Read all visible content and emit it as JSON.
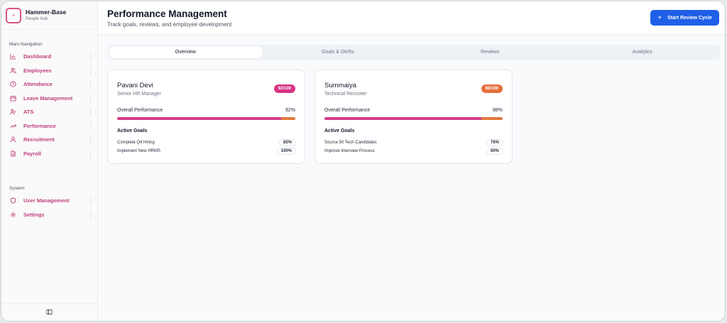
{
  "brand": {
    "name": "Hammer-Base",
    "subtitle": "People Hub",
    "logo_text": "a"
  },
  "sidebar": {
    "main_label": "Main Navigation",
    "items": [
      {
        "label": "Dashboard",
        "icon": "bar-chart-icon"
      },
      {
        "label": "Employees",
        "icon": "users-icon"
      },
      {
        "label": "Attendance",
        "icon": "clock-icon"
      },
      {
        "label": "Leave Management",
        "icon": "calendar-icon"
      },
      {
        "label": "ATS",
        "icon": "user-check-icon"
      },
      {
        "label": "Performance",
        "icon": "trending-up-icon"
      },
      {
        "label": "Recruitment",
        "icon": "user-icon"
      },
      {
        "label": "Payroll",
        "icon": "file-icon"
      }
    ],
    "system_label": "System",
    "system_items": [
      {
        "label": "User Management",
        "icon": "shield-icon"
      },
      {
        "label": "Settings",
        "icon": "gear-icon"
      }
    ],
    "icon_color": "#c0407a"
  },
  "header": {
    "title": "Performance Management",
    "subtitle": "Track goals, reviews, and employee development",
    "cta_label": "Start Review Cycle"
  },
  "tabs": [
    {
      "label": "Overview",
      "active": true
    },
    {
      "label": "Goals & OKRs",
      "active": false
    },
    {
      "label": "Reviews",
      "active": false
    },
    {
      "label": "Analytics",
      "active": false
    }
  ],
  "employees": [
    {
      "name": "Pavani Devi",
      "role": "Senior HR Manager",
      "score_badge": "92/100",
      "badge_color": "#d63384",
      "overall_label": "Overall Performance",
      "overall_value": "92%",
      "overall_fraction": 0.92,
      "goals_title": "Active Goals",
      "goals": [
        {
          "name": "Complete Q4 Hiring",
          "value": "85%"
        },
        {
          "name": "Implement New HRMS",
          "value": "100%"
        }
      ]
    },
    {
      "name": "Summaiya",
      "role": "Technical Recruiter",
      "score_badge": "88/100",
      "badge_color": "#e4703e",
      "overall_label": "Overall Performance",
      "overall_value": "88%",
      "overall_fraction": 0.88,
      "goals_title": "Active Goals",
      "goals": [
        {
          "name": "Source 50 Tech Candidates",
          "value": "76%"
        },
        {
          "name": "Improve Interview Process",
          "value": "60%"
        }
      ]
    }
  ]
}
